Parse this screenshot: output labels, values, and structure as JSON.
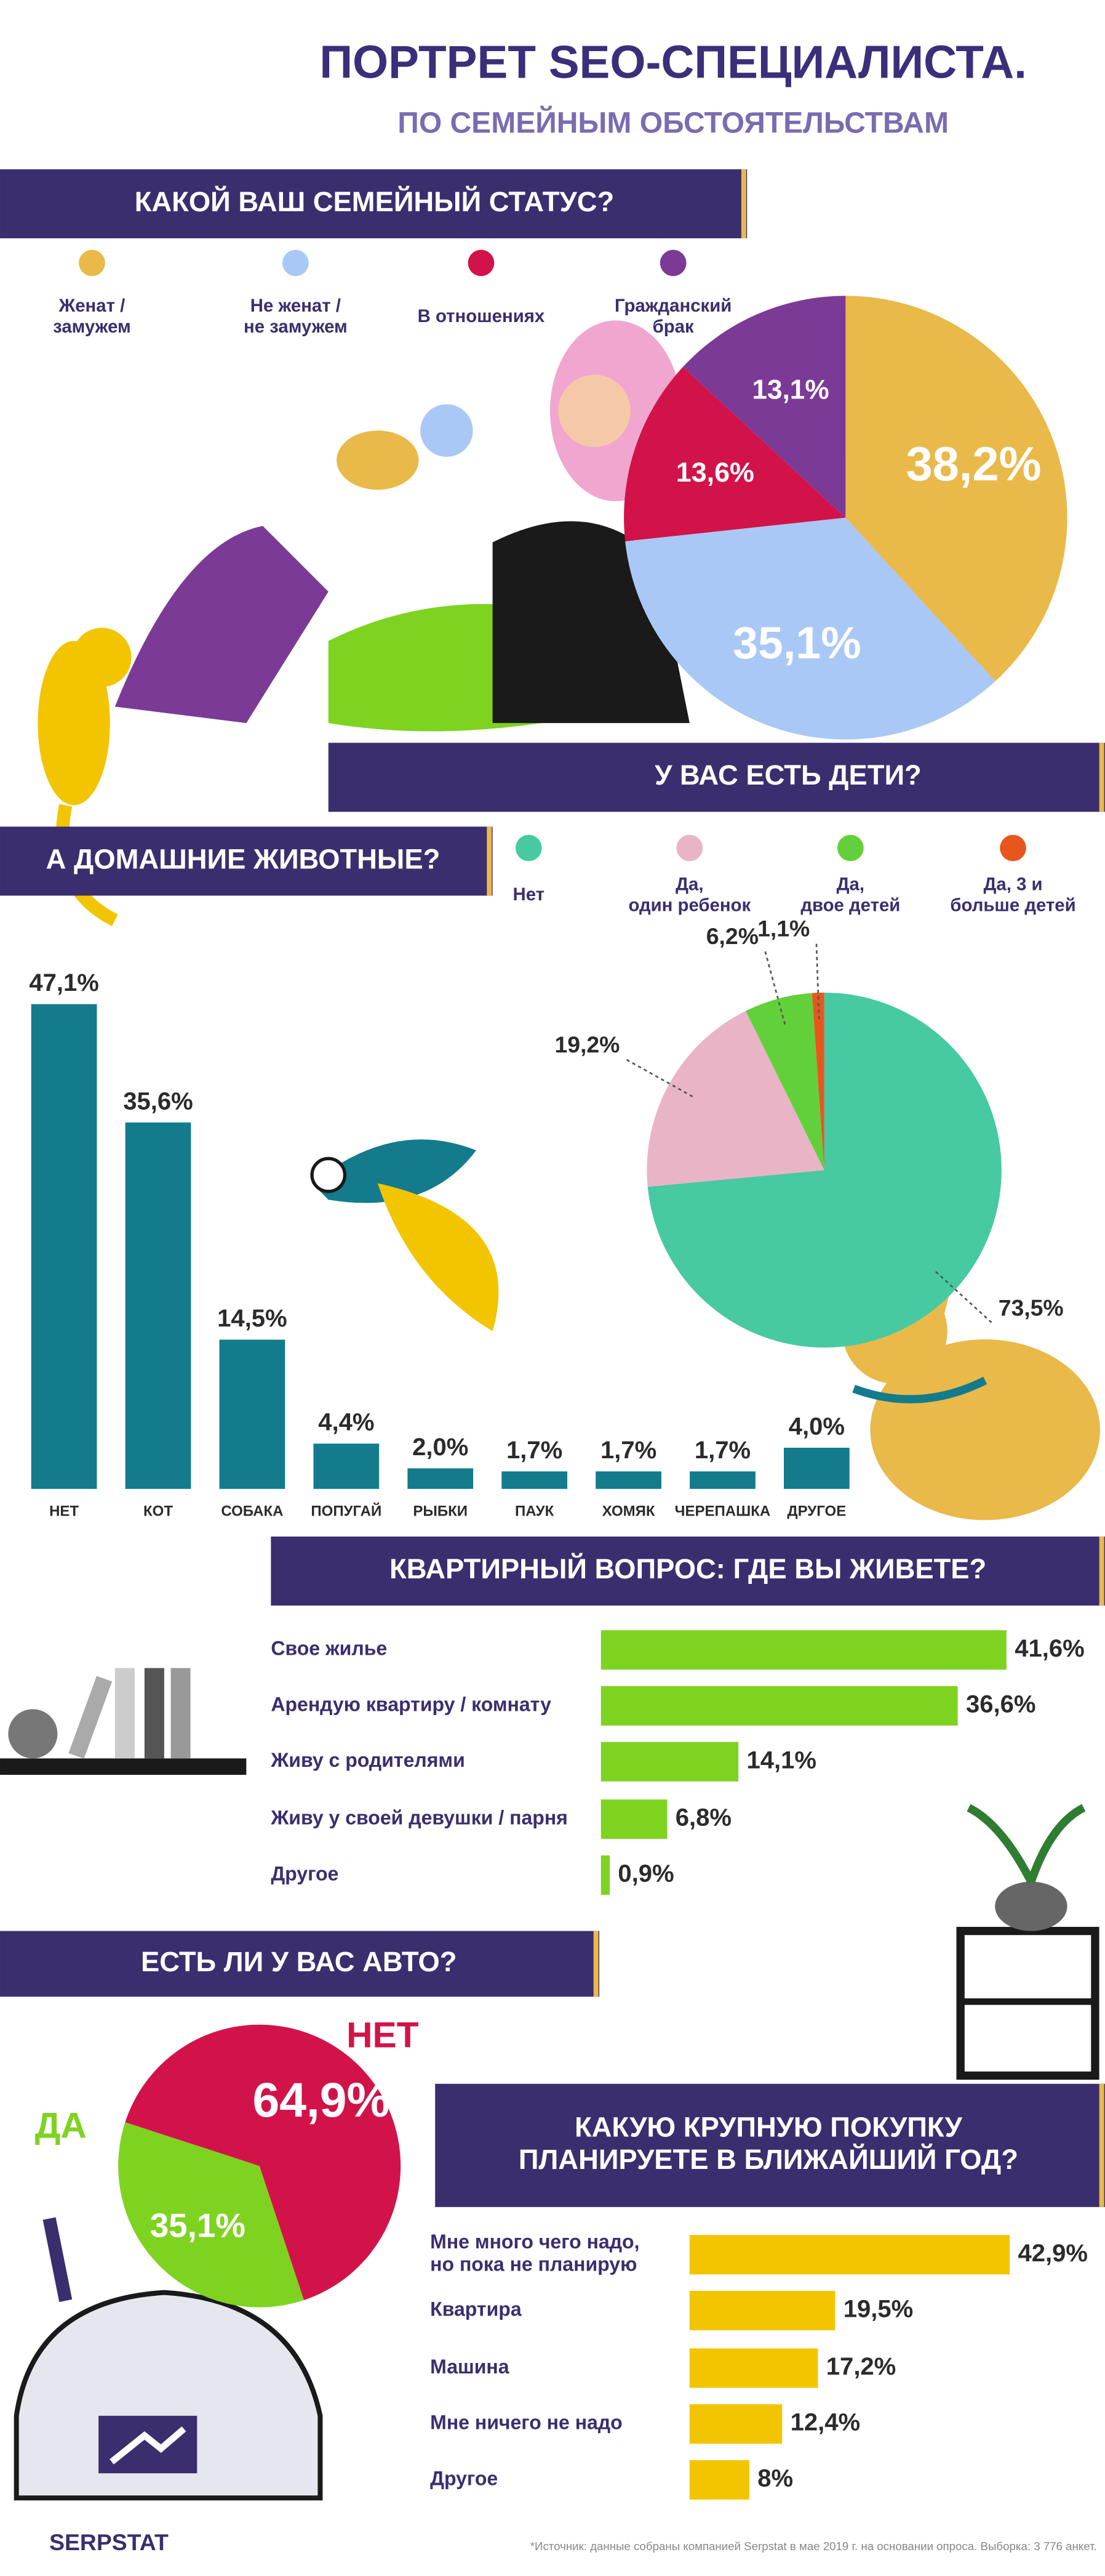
{
  "title": "ПОРТРЕТ SEO-СПЕЦИАЛИСТА.",
  "subtitle": "ПО СЕМЕЙНЫМ ОБСТОЯТЕЛЬСТВАМ",
  "chart_data": [
    {
      "type": "pie",
      "title": "КАКОЙ ВАШ СЕМЕЙНЫЙ СТАТУС?",
      "categories": [
        "Женат /\nзамужем",
        "Не женат /\nне замужем",
        "В отношениях",
        "Гражданский\nбрак"
      ],
      "values": [
        38.2,
        35.1,
        13.6,
        13.1
      ],
      "value_labels": [
        "38,2%",
        "35,1%",
        "13,6%",
        "13,1%"
      ],
      "colors": [
        "#e9b949",
        "#a9c8f5",
        "#d2134a",
        "#7b3a96"
      ]
    },
    {
      "type": "bar",
      "title": "А ДОМАШНИЕ ЖИВОТНЫЕ?",
      "categories": [
        "НЕТ",
        "КОТ",
        "СОБАКА",
        "ПОПУГАЙ",
        "РЫБКИ",
        "ПАУК",
        "ХОМЯК",
        "ЧЕРЕПАШКА",
        "ДРУГОЕ"
      ],
      "values": [
        47.1,
        35.6,
        14.5,
        4.4,
        2.0,
        1.7,
        1.7,
        1.7,
        4.0
      ],
      "value_labels": [
        "47,1%",
        "35,6%",
        "14,5%",
        "4,4%",
        "2,0%",
        "1,7%",
        "1,7%",
        "1,7%",
        "4,0%"
      ],
      "color": "#137b8c"
    },
    {
      "type": "pie",
      "title": "У ВАС ЕСТЬ ДЕТИ?",
      "categories": [
        "Нет",
        "Да,\nодин ребенок",
        "Да,\nдвое детей",
        "Да, 3 и\nбольше детей"
      ],
      "values": [
        73.5,
        19.2,
        6.2,
        1.1
      ],
      "value_labels": [
        "73,5%",
        "19,2%",
        "6,2%",
        "1,1%"
      ],
      "colors": [
        "#47c9a2",
        "#e9b4c6",
        "#62d03a",
        "#e8561e"
      ]
    },
    {
      "type": "hbar",
      "title": "КВАРТИРНЫЙ ВОПРОС: ГДЕ ВЫ ЖИВЕТЕ?",
      "categories": [
        "Свое жилье",
        "Арендую квартиру / комнату",
        "Живу с родителями",
        "Живу у своей девушки / парня",
        "Другое"
      ],
      "values": [
        41.6,
        36.6,
        14.1,
        6.8,
        0.9
      ],
      "value_labels": [
        "41,6%",
        "36,6%",
        "14,1%",
        "6,8%",
        "0,9%"
      ],
      "color": "#7ed321"
    },
    {
      "type": "pie",
      "title": "ЕСТЬ ЛИ У ВАС АВТО?",
      "categories": [
        "НЕТ",
        "ДА"
      ],
      "values": [
        64.9,
        35.1
      ],
      "value_labels": [
        "64,9%",
        "35,1%"
      ],
      "colors": [
        "#d2134a",
        "#7ed321"
      ]
    },
    {
      "type": "hbar",
      "title": "КАКУЮ КРУПНУЮ ПОКУПКУ\nПЛАНИРУЕТЕ В БЛИЖАЙШИЙ ГОД?",
      "categories": [
        "Мне много чего надо,\nно пока не планирую",
        "Квартира",
        "Машина",
        "Мне ничего не надо",
        "Другое"
      ],
      "values": [
        42.9,
        19.5,
        17.2,
        12.4,
        8
      ],
      "value_labels": [
        "42,9%",
        "19,5%",
        "17,2%",
        "12,4%",
        "8%"
      ],
      "color": "#f2c500"
    }
  ],
  "footnote": "*Источник: данные собраны компанией Serpstat в мае 2019 г. на основании опроса. Выборка: 3 776 анкет.",
  "brand": "SERPSTAT"
}
